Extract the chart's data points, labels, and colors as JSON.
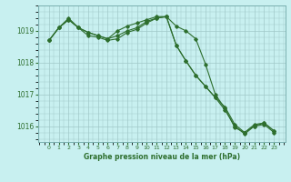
{
  "title": "Graphe pression niveau de la mer (hPa)",
  "bg_color": "#c8f0f0",
  "grid_color": "#a0c8c8",
  "line_color": "#2d6e2d",
  "x_labels": [
    "0",
    "1",
    "2",
    "3",
    "4",
    "5",
    "6",
    "7",
    "8",
    "9",
    "10",
    "11",
    "12",
    "13",
    "14",
    "15",
    "16",
    "17",
    "18",
    "19",
    "20",
    "21",
    "22",
    "23"
  ],
  "ylim": [
    1015.5,
    1019.8
  ],
  "yticks": [
    1016,
    1017,
    1018,
    1019
  ],
  "series1": [
    1018.7,
    1019.1,
    1019.35,
    1019.1,
    1018.95,
    1018.85,
    1018.75,
    1019.0,
    1019.15,
    1019.25,
    1019.35,
    1019.45,
    1019.45,
    1019.15,
    1019.0,
    1018.75,
    1017.95,
    1017.0,
    1016.55,
    1015.95,
    1015.8,
    1016.0,
    1016.1,
    1015.85
  ],
  "series2": [
    1018.7,
    1019.1,
    1019.4,
    1019.1,
    1018.95,
    1018.85,
    1018.75,
    1018.85,
    1019.0,
    1019.1,
    1019.3,
    1019.4,
    1019.45,
    1018.55,
    1018.05,
    1017.6,
    1017.25,
    1016.9,
    1016.5,
    1016.0,
    1015.75,
    1016.0,
    1016.05,
    1015.8
  ],
  "series3": [
    1018.7,
    1019.1,
    1019.35,
    1019.1,
    1018.85,
    1018.8,
    1018.7,
    1018.75,
    1018.95,
    1019.05,
    1019.25,
    1019.4,
    1019.45,
    1018.55,
    1018.05,
    1017.6,
    1017.25,
    1016.9,
    1016.6,
    1016.05,
    1015.8,
    1016.05,
    1016.1,
    1015.85
  ]
}
